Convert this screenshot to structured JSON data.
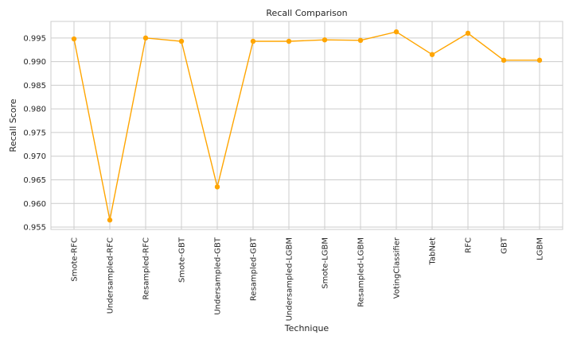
{
  "chart_data": {
    "type": "line",
    "title": "Recall Comparison",
    "xlabel": "Technique",
    "ylabel": "Recall Score",
    "categories": [
      "Smote-RFC",
      "Undersampled-RFC",
      "Resampled-RFC",
      "Smote-GBT",
      "Undersampled-GBT",
      "Resampled-GBT",
      "Undersampled-LGBM",
      "Smote-LGBM",
      "Resampled-LGBM",
      "VotingClassifier",
      "TabNet",
      "RFC",
      "GBT",
      "LGBM"
    ],
    "series": [
      {
        "values": [
          0.9948,
          0.9565,
          0.995,
          0.9943,
          0.9635,
          0.9943,
          0.9943,
          0.9946,
          0.9945,
          0.9963,
          0.9915,
          0.996,
          0.9903,
          0.9903
        ],
        "color": "#FFA500"
      }
    ],
    "ylim": [
      0.9545,
      0.9985
    ],
    "yticks": [
      "0.955",
      "0.960",
      "0.965",
      "0.970",
      "0.975",
      "0.980",
      "0.985",
      "0.990",
      "0.995"
    ],
    "grid": true,
    "legend": "none"
  }
}
